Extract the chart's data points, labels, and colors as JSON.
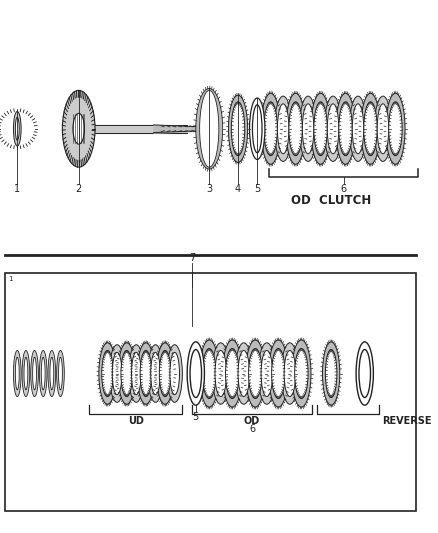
{
  "bg_color": "#ffffff",
  "line_color": "#555555",
  "dark_line": "#222222",
  "gray_fill": "#999999",
  "light_gray": "#cccccc",
  "mid_gray": "#bbbbbb",
  "white": "#ffffff",
  "top_section": {
    "label_1": "1",
    "label_2": "2",
    "label_3": "3",
    "label_4": "4",
    "label_5": "5",
    "label_6": "6",
    "od_clutch_label": "OD  CLUTCH"
  },
  "bottom_section": {
    "label_5": "5",
    "label_6": "6",
    "label_7": "7",
    "ud_label": "UD",
    "od_label": "OD",
    "reverse_label": "REVERSE",
    "corner_label": "1"
  },
  "font_size_label": 7,
  "font_size_bracket": 7,
  "font_size_od": 8.5
}
